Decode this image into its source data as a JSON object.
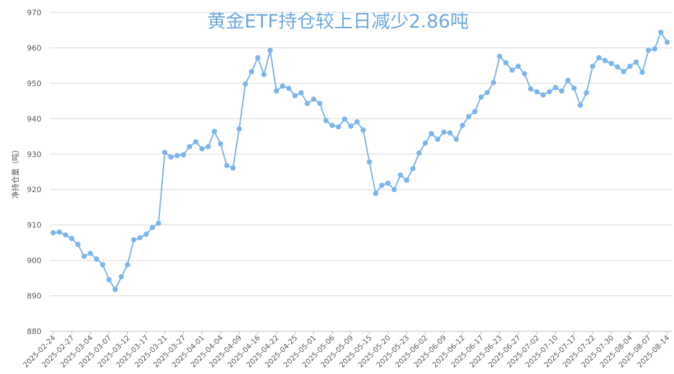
{
  "chart_data": {
    "type": "line",
    "title": "黄金ETF持仓较上日减少2.86吨",
    "y_label": "净持仓量（吨）",
    "categories": [
      "2025-02-24",
      null,
      null,
      "2025-02-27",
      null,
      null,
      "2025-03-04",
      null,
      null,
      "2025-03-07",
      null,
      null,
      "2025-03-12",
      null,
      null,
      "2025-03-17",
      null,
      null,
      "2025-03-21",
      null,
      null,
      "2025-03-27",
      null,
      null,
      "2025-04-01",
      null,
      null,
      "2025-04-04",
      null,
      null,
      "2025-04-09",
      null,
      null,
      "2025-04-16",
      null,
      null,
      "2025-04-22",
      null,
      null,
      "2025-04-25",
      null,
      null,
      "2025-05-01",
      null,
      null,
      "2025-05-06",
      null,
      null,
      "2025-05-09",
      null,
      null,
      "2025-05-15",
      null,
      null,
      "2025-05-20",
      null,
      null,
      "2025-05-23",
      null,
      null,
      "2025-06-02",
      null,
      null,
      "2025-06-09",
      null,
      null,
      "2025-06-12",
      null,
      null,
      "2025-06-17",
      null,
      null,
      "2025-06-23",
      null,
      null,
      "2025-06-27",
      null,
      null,
      "2025-07-02",
      null,
      null,
      "2025-07-10",
      null,
      null,
      "2025-07-17",
      null,
      null,
      "2025-07-22",
      null,
      null,
      "2025-07-30",
      null,
      null,
      "2025-08-04",
      null,
      null,
      "2025-08-07",
      null,
      null,
      "2025-08-14"
    ],
    "series": [
      {
        "name": "净持仓量",
        "color": "#7cb5ec",
        "values": [
          907.8,
          908.0,
          907.2,
          906.2,
          904.5,
          901.2,
          902.0,
          900.4,
          898.8,
          894.6,
          891.8,
          895.4,
          898.8,
          905.8,
          906.4,
          907.4,
          909.3,
          910.5,
          930.5,
          929.2,
          929.6,
          929.8,
          932.1,
          933.5,
          931.5,
          932.1,
          936.4,
          932.9,
          926.8,
          926.1,
          937.1,
          949.8,
          953.3,
          957.2,
          952.5,
          959.3,
          947.8,
          949.2,
          948.6,
          946.5,
          947.3,
          944.3,
          945.5,
          944.3,
          939.5,
          938.1,
          937.7,
          939.9,
          937.9,
          939.1,
          936.8,
          927.8,
          918.9,
          921.2,
          921.8,
          920.0,
          924.1,
          922.6,
          925.9,
          930.3,
          933.1,
          935.8,
          934.2,
          936.2,
          936.0,
          934.2,
          938.1,
          940.6,
          942.0,
          946.1,
          947.4,
          950.2,
          957.6,
          955.8,
          953.7,
          954.8,
          952.7,
          948.4,
          947.6,
          946.7,
          947.6,
          948.8,
          947.8,
          950.8,
          948.6,
          943.8,
          947.3,
          954.8,
          957.2,
          956.4,
          955.6,
          954.6,
          953.3,
          954.8,
          956.0,
          953.1,
          959.3,
          959.7,
          964.4,
          961.6
        ]
      }
    ],
    "ylim": [
      880,
      970
    ],
    "yticks": [
      880,
      890,
      900,
      910,
      920,
      930,
      940,
      950,
      960,
      970
    ],
    "grid": true
  }
}
